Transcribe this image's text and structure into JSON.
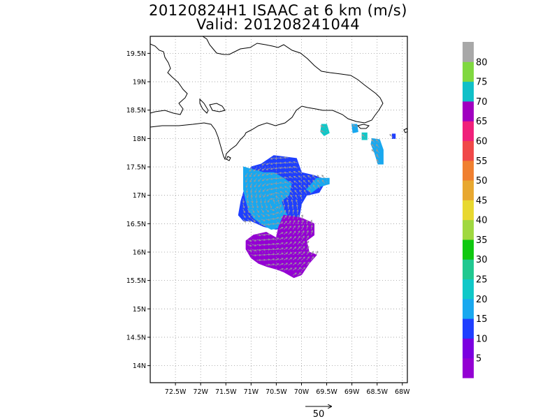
{
  "title": {
    "line1": "20120824H1 ISAAC at 6 km (m/s)",
    "line2": "Valid: 201208241044"
  },
  "map": {
    "lon_range": [
      -73.0,
      -67.9
    ],
    "lat_range": [
      13.7,
      19.8
    ],
    "lon_ticks": [
      {
        "value": -72.5,
        "label": "72.5W"
      },
      {
        "value": -72.0,
        "label": "72W"
      },
      {
        "value": -71.5,
        "label": "71.5W"
      },
      {
        "value": -71.0,
        "label": "71W"
      },
      {
        "value": -70.5,
        "label": "70.5W"
      },
      {
        "value": -70.0,
        "label": "70W"
      },
      {
        "value": -69.5,
        "label": "69.5W"
      },
      {
        "value": -69.0,
        "label": "69W"
      },
      {
        "value": -68.5,
        "label": "68.5W"
      },
      {
        "value": -68.0,
        "label": "68W"
      }
    ],
    "lat_ticks": [
      {
        "value": 19.5,
        "label": "19.5N"
      },
      {
        "value": 19.0,
        "label": "19N"
      },
      {
        "value": 18.5,
        "label": "18.5N"
      },
      {
        "value": 18.0,
        "label": "18N"
      },
      {
        "value": 17.5,
        "label": "17.5N"
      },
      {
        "value": 17.0,
        "label": "17N"
      },
      {
        "value": 16.5,
        "label": "16.5N"
      },
      {
        "value": 16.0,
        "label": "16N"
      },
      {
        "value": 15.5,
        "label": "15.5N"
      },
      {
        "value": 15.0,
        "label": "15N"
      },
      {
        "value": 14.5,
        "label": "14.5N"
      },
      {
        "value": 14.0,
        "label": "14N"
      }
    ],
    "grid": true,
    "coastline_color": "#000000",
    "arrow_color": "#9a9a9a"
  },
  "wind_regions": [
    {
      "name": "outer-band-blue",
      "speed": 15,
      "color": "#1f3fff",
      "polygon": [
        [
          -71.0,
          17.5
        ],
        [
          -70.8,
          17.55
        ],
        [
          -70.55,
          17.7
        ],
        [
          -70.1,
          17.65
        ],
        [
          -70.0,
          17.4
        ],
        [
          -69.75,
          17.35
        ],
        [
          -69.6,
          17.3
        ],
        [
          -69.55,
          17.2
        ],
        [
          -69.65,
          17.05
        ],
        [
          -69.9,
          17.0
        ],
        [
          -70.0,
          16.85
        ],
        [
          -70.05,
          16.6
        ],
        [
          -70.2,
          16.5
        ],
        [
          -70.5,
          16.4
        ],
        [
          -70.75,
          16.45
        ],
        [
          -71.0,
          16.55
        ],
        [
          -71.15,
          16.55
        ],
        [
          -71.25,
          16.65
        ],
        [
          -71.2,
          16.9
        ],
        [
          -71.1,
          17.2
        ]
      ]
    },
    {
      "name": "inner-core-cyan",
      "speed": 20,
      "color": "#19a8ef",
      "polygon": [
        [
          -71.15,
          17.5
        ],
        [
          -70.95,
          17.45
        ],
        [
          -70.75,
          17.4
        ],
        [
          -70.55,
          17.4
        ],
        [
          -70.35,
          17.3
        ],
        [
          -70.2,
          17.2
        ],
        [
          -70.25,
          17.0
        ],
        [
          -70.4,
          16.9
        ],
        [
          -70.35,
          16.75
        ],
        [
          -70.25,
          16.6
        ],
        [
          -70.35,
          16.45
        ],
        [
          -70.6,
          16.4
        ],
        [
          -70.8,
          16.5
        ],
        [
          -70.95,
          16.6
        ],
        [
          -71.05,
          16.75
        ],
        [
          -71.1,
          16.9
        ],
        [
          -71.15,
          17.1
        ]
      ]
    },
    {
      "name": "eastern-band-cyan",
      "speed": 20,
      "color": "#19a8ef",
      "polygon": [
        [
          -69.7,
          17.3
        ],
        [
          -69.45,
          17.3
        ],
        [
          -69.45,
          17.2
        ],
        [
          -69.65,
          17.15
        ],
        [
          -69.8,
          17.05
        ],
        [
          -69.9,
          17.1
        ]
      ]
    },
    {
      "name": "southern-band-purple",
      "speed": 10,
      "color": "#9400d3",
      "polygon": [
        [
          -70.35,
          16.65
        ],
        [
          -70.0,
          16.6
        ],
        [
          -69.75,
          16.5
        ],
        [
          -69.75,
          16.3
        ],
        [
          -69.9,
          16.2
        ],
        [
          -69.85,
          16.0
        ],
        [
          -69.7,
          15.95
        ],
        [
          -69.85,
          15.8
        ],
        [
          -70.0,
          15.6
        ],
        [
          -70.15,
          15.55
        ],
        [
          -70.35,
          15.65
        ],
        [
          -70.5,
          15.7
        ],
        [
          -70.7,
          15.75
        ],
        [
          -70.85,
          15.8
        ],
        [
          -71.0,
          15.9
        ],
        [
          -71.1,
          16.05
        ],
        [
          -71.1,
          16.2
        ],
        [
          -70.95,
          16.3
        ],
        [
          -70.7,
          16.35
        ],
        [
          -70.5,
          16.25
        ],
        [
          -70.45,
          16.45
        ]
      ]
    },
    {
      "name": "northeast-cell-a",
      "speed": 25,
      "color": "#10c8c8",
      "polygon": [
        [
          -69.6,
          18.25
        ],
        [
          -69.5,
          18.25
        ],
        [
          -69.45,
          18.1
        ],
        [
          -69.55,
          18.05
        ],
        [
          -69.62,
          18.12
        ]
      ]
    },
    {
      "name": "northeast-cell-b",
      "speed": 20,
      "color": "#19a8ef",
      "polygon": [
        [
          -69.0,
          18.25
        ],
        [
          -68.9,
          18.25
        ],
        [
          -68.88,
          18.12
        ],
        [
          -68.98,
          18.1
        ]
      ]
    },
    {
      "name": "northeast-cell-c",
      "speed": 25,
      "color": "#10c8c8",
      "polygon": [
        [
          -68.8,
          18.1
        ],
        [
          -68.7,
          18.1
        ],
        [
          -68.7,
          17.98
        ],
        [
          -68.8,
          17.98
        ]
      ]
    },
    {
      "name": "northeast-cell-d",
      "speed": 20,
      "color": "#19a8ef",
      "polygon": [
        [
          -68.6,
          18.0
        ],
        [
          -68.45,
          17.98
        ],
        [
          -68.38,
          17.8
        ],
        [
          -68.38,
          17.55
        ],
        [
          -68.48,
          17.55
        ],
        [
          -68.55,
          17.75
        ],
        [
          -68.62,
          17.9
        ]
      ]
    },
    {
      "name": "northeast-cell-e",
      "speed": 15,
      "color": "#1f3fff",
      "polygon": [
        [
          -68.2,
          18.08
        ],
        [
          -68.14,
          18.08
        ],
        [
          -68.14,
          18.0
        ],
        [
          -68.2,
          18.0
        ]
      ]
    }
  ],
  "colorbar": {
    "bins": [
      {
        "color": "#9400d3"
      },
      {
        "color": "#7b00e0"
      },
      {
        "color": "#1f3fff"
      },
      {
        "color": "#19a8ef"
      },
      {
        "color": "#10c8c8"
      },
      {
        "color": "#20c890"
      },
      {
        "color": "#10c810"
      },
      {
        "color": "#a0d840"
      },
      {
        "color": "#e8d830"
      },
      {
        "color": "#e8a830"
      },
      {
        "color": "#f08030"
      },
      {
        "color": "#f04848"
      },
      {
        "color": "#f0207a"
      },
      {
        "color": "#a000c0"
      },
      {
        "color": "#10c0c8"
      },
      {
        "color": "#80d840"
      },
      {
        "color": "#a8a8a8"
      }
    ],
    "labels": [
      "5",
      "10",
      "15",
      "20",
      "25",
      "30",
      "35",
      "40",
      "45",
      "50",
      "55",
      "60",
      "65",
      "70",
      "75",
      "80"
    ]
  },
  "scale_arrow": {
    "label": "50"
  }
}
